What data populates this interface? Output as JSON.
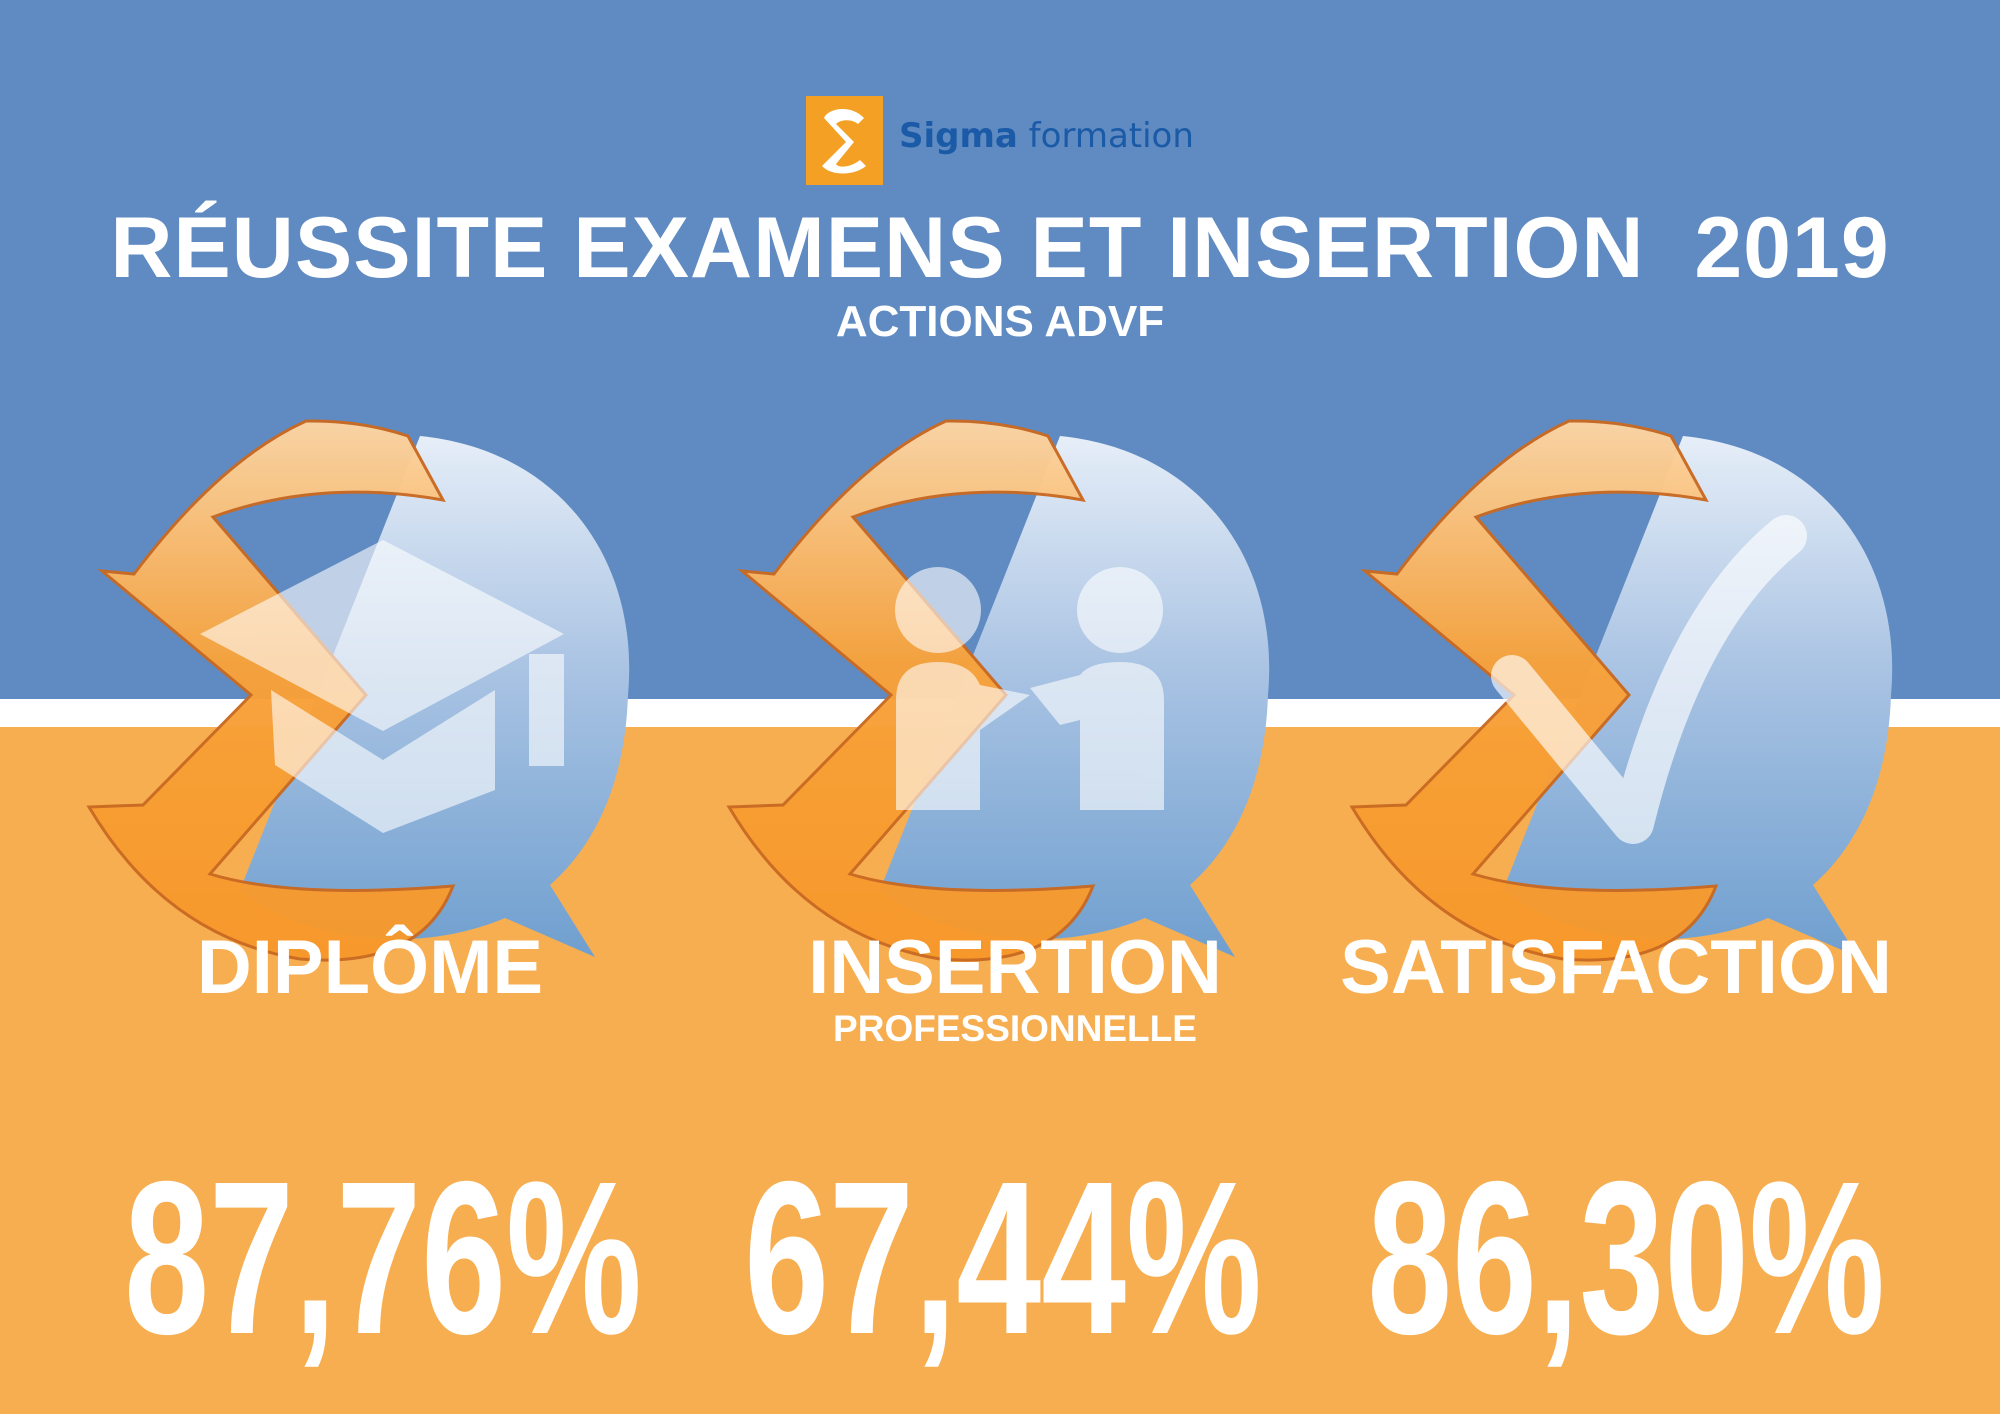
{
  "header": {
    "logo": {
      "symbol": "Σ",
      "brand_bold": "Sigma",
      "brand_rest": "formation",
      "box_color": "#f4a024",
      "text_color": "#1a5aa6"
    },
    "title": "RÉUSSITE EXAMENS ET INSERTION  2019",
    "subtitle": "ACTIONS ADVF"
  },
  "colors": {
    "top": "#5f8bc2",
    "bottom": "#f7ae50",
    "sigma_orange": "#f7982a",
    "bubble_blue": "#7fa8d4"
  },
  "stats": [
    {
      "icon": "graduation-cap-icon",
      "label": "DIPLÔME",
      "sublabel": "",
      "value": "87,76%"
    },
    {
      "icon": "handshake-icon",
      "label": "INSERTION",
      "sublabel": "PROFESSIONNELLE",
      "value": "67,44%"
    },
    {
      "icon": "checkmark-icon",
      "label": "SATISFACTION",
      "sublabel": "",
      "value": "86,30%"
    }
  ]
}
